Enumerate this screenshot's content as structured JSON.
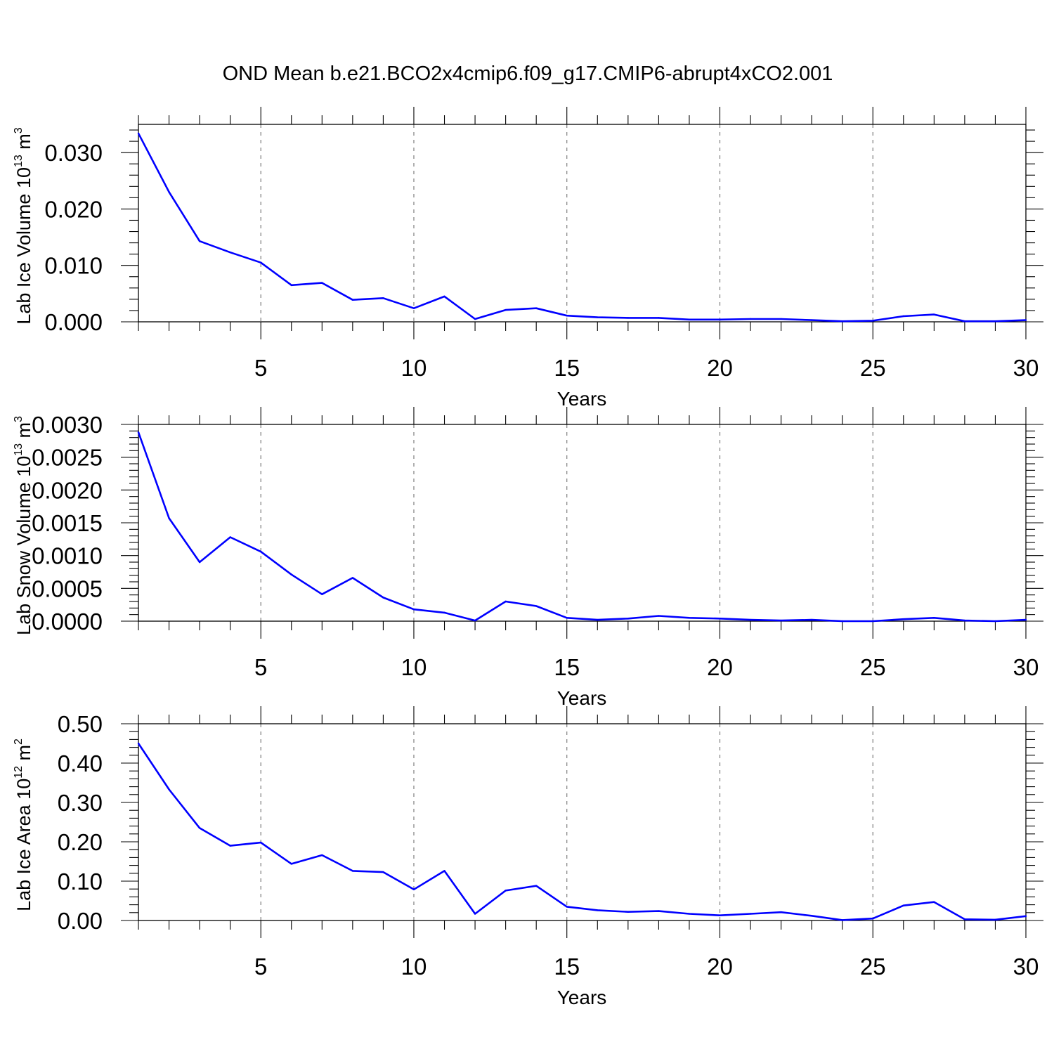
{
  "title": "OND Mean b.e21.BCO2x4cmip6.f09_g17.CMIP6-abrupt4xCO2.001",
  "colors": {
    "line": "#0000ff",
    "axis": "#000000",
    "grid": "#7f7f7f"
  },
  "chart_data": [
    {
      "type": "line",
      "xlabel": "Years",
      "ylabel": {
        "text": "Lab Ice Volume 10",
        "sup": "13",
        "unit": " m",
        "unit_sup": "3"
      },
      "xlim": [
        1,
        30
      ],
      "ylim": [
        0.0,
        0.035
      ],
      "xticks": [
        5,
        10,
        15,
        20,
        25,
        30
      ],
      "xtick_labels": [
        "5",
        "10",
        "15",
        "20",
        "25",
        "30"
      ],
      "yticks": [
        0.0,
        0.01,
        0.02,
        0.03
      ],
      "ytick_labels": [
        "0.000",
        "0.010",
        "0.020",
        "0.030"
      ],
      "grid": "vertical dashed at major x ticks",
      "x": [
        1,
        2,
        3,
        4,
        5,
        6,
        7,
        8,
        9,
        10,
        11,
        12,
        13,
        14,
        15,
        16,
        17,
        18,
        19,
        20,
        21,
        22,
        23,
        24,
        25,
        26,
        27,
        28,
        29,
        30
      ],
      "y": [
        0.0334,
        0.023,
        0.0143,
        0.0123,
        0.0105,
        0.0065,
        0.0069,
        0.0039,
        0.0042,
        0.0024,
        0.0045,
        0.0005,
        0.0021,
        0.0024,
        0.0011,
        0.0008,
        0.0007,
        0.0007,
        0.0004,
        0.0004,
        0.0005,
        0.0005,
        0.0003,
        0.0001,
        0.0002,
        0.001,
        0.0013,
        0.0001,
        0.0001,
        0.0003
      ]
    },
    {
      "type": "line",
      "xlabel": "Years",
      "ylabel": {
        "text": "Lab Snow Volume 10",
        "sup": "13",
        "unit": " m",
        "unit_sup": "3"
      },
      "xlim": [
        1,
        30
      ],
      "ylim": [
        0.0,
        0.003
      ],
      "xticks": [
        5,
        10,
        15,
        20,
        25,
        30
      ],
      "xtick_labels": [
        "5",
        "10",
        "15",
        "20",
        "25",
        "30"
      ],
      "yticks": [
        0.0,
        0.0005,
        0.001,
        0.0015,
        0.002,
        0.0025,
        0.003
      ],
      "ytick_labels": [
        "0.0000",
        "0.0005",
        "0.0010",
        "0.0015",
        "0.0020",
        "0.0025",
        "0.0030"
      ],
      "grid": "vertical dashed at major x ticks",
      "x": [
        1,
        2,
        3,
        4,
        5,
        6,
        7,
        8,
        9,
        10,
        11,
        12,
        13,
        14,
        15,
        16,
        17,
        18,
        19,
        20,
        21,
        22,
        23,
        24,
        25,
        26,
        27,
        28,
        29,
        30
      ],
      "y": [
        0.00288,
        0.00157,
        0.0009,
        0.00128,
        0.00106,
        0.00071,
        0.00041,
        0.00066,
        0.00036,
        0.00018,
        0.00013,
        1e-05,
        0.0003,
        0.00023,
        5e-05,
        2e-05,
        4e-05,
        8e-05,
        5e-05,
        4e-05,
        2e-05,
        1e-05,
        2e-05,
        0.0,
        0.0,
        3e-05,
        5e-05,
        1e-05,
        0.0,
        2e-05
      ]
    },
    {
      "type": "line",
      "xlabel": "Years",
      "ylabel": {
        "text": "Lab Ice Area 10",
        "sup": "12",
        "unit": " m",
        "unit_sup": "2"
      },
      "xlim": [
        1,
        30
      ],
      "ylim": [
        0.0,
        0.5
      ],
      "xticks": [
        5,
        10,
        15,
        20,
        25,
        30
      ],
      "xtick_labels": [
        "5",
        "10",
        "15",
        "20",
        "25",
        "30"
      ],
      "yticks": [
        0.0,
        0.1,
        0.2,
        0.3,
        0.4,
        0.5
      ],
      "ytick_labels": [
        "0.00",
        "0.10",
        "0.20",
        "0.30",
        "0.40",
        "0.50"
      ],
      "grid": "vertical dashed at major x ticks",
      "x": [
        1,
        2,
        3,
        4,
        5,
        6,
        7,
        8,
        9,
        10,
        11,
        12,
        13,
        14,
        15,
        16,
        17,
        18,
        19,
        20,
        21,
        22,
        23,
        24,
        25,
        26,
        27,
        28,
        29,
        30
      ],
      "y": [
        0.45,
        0.333,
        0.235,
        0.19,
        0.198,
        0.144,
        0.166,
        0.126,
        0.123,
        0.079,
        0.126,
        0.017,
        0.076,
        0.088,
        0.035,
        0.026,
        0.022,
        0.024,
        0.017,
        0.013,
        0.017,
        0.021,
        0.012,
        0.001,
        0.005,
        0.038,
        0.047,
        0.003,
        0.002,
        0.011
      ]
    }
  ]
}
